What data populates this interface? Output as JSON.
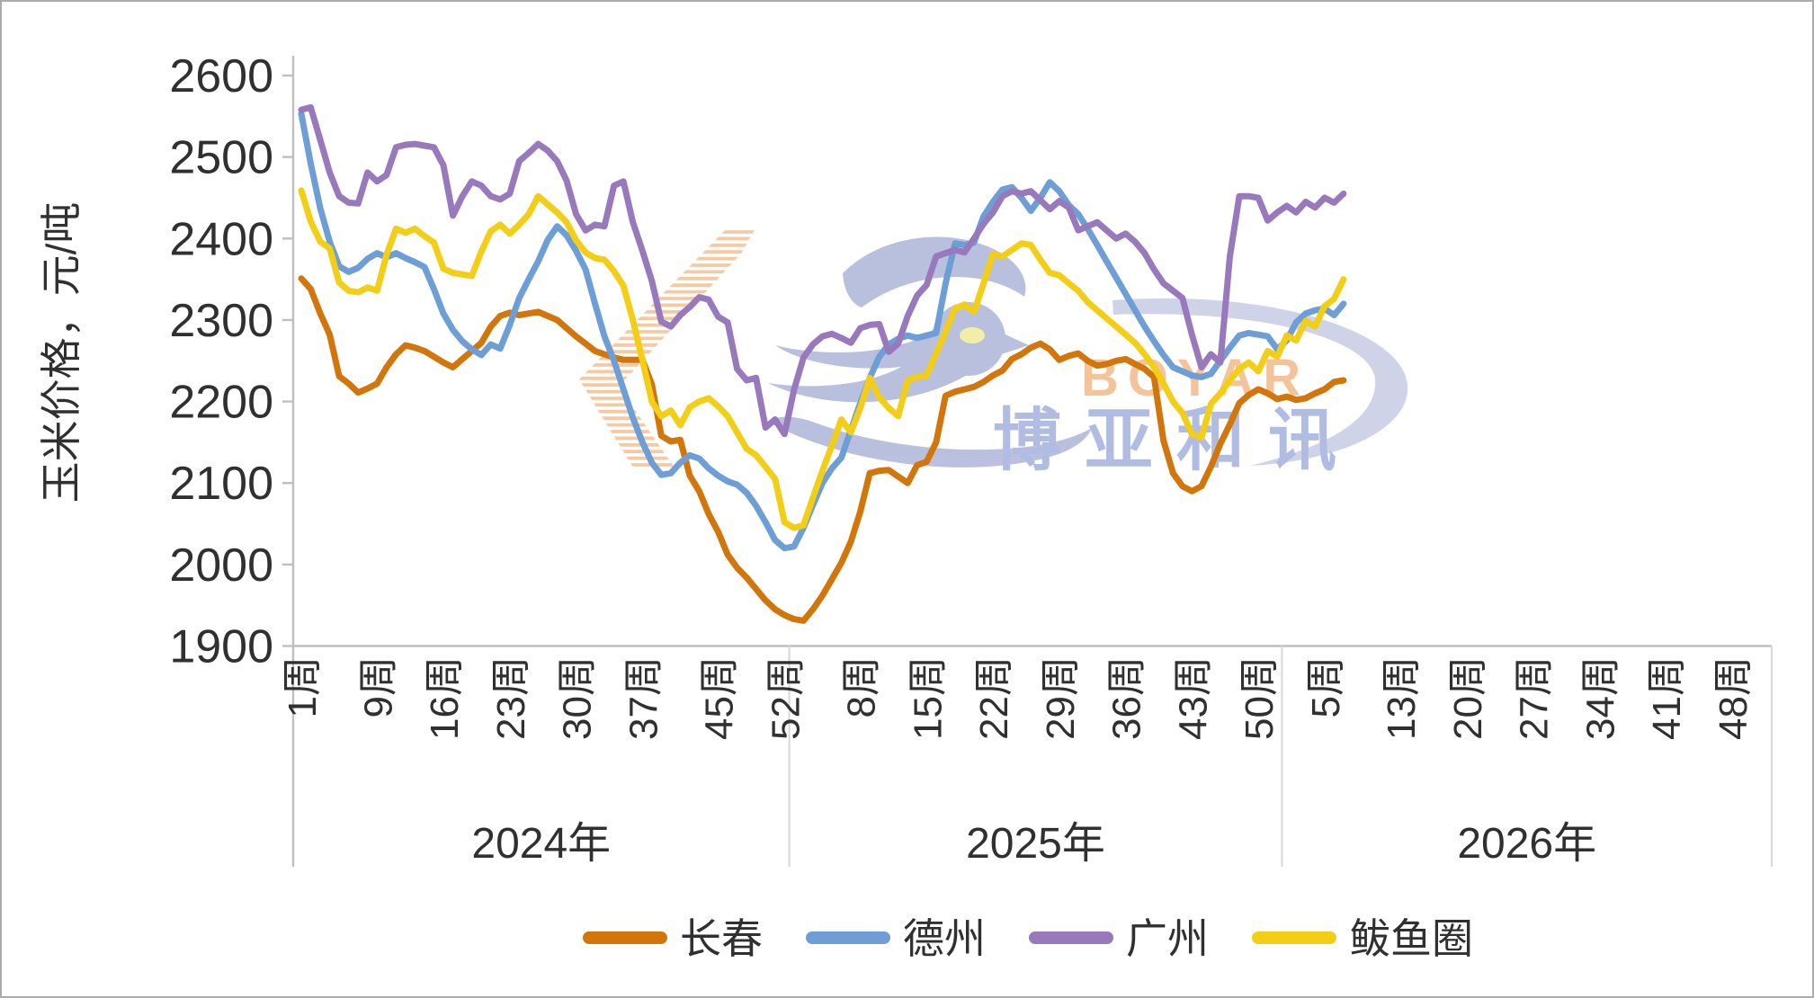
{
  "chart_data": {
    "type": "line",
    "title": "",
    "ylabel": "玉米价格，元/吨",
    "ylim": [
      1900,
      2600
    ],
    "ytick_step": 100,
    "ytick_labels": [
      "1900",
      "2000",
      "2100",
      "2200",
      "2300",
      "2400",
      "2500",
      "2600"
    ],
    "grid": false,
    "legend_position": "bottom",
    "axis_color": "#bfbfbf",
    "separator_color": "#d9d9d9",
    "text_color": "#303030",
    "x_groups": [
      {
        "year_label": "2024年",
        "weeks_in_group": 52,
        "tick_labels": [
          {
            "week": 1,
            "text": "1周"
          },
          {
            "week": 9,
            "text": "9周"
          },
          {
            "week": 16,
            "text": "16周"
          },
          {
            "week": 23,
            "text": "23周"
          },
          {
            "week": 30,
            "text": "30周"
          },
          {
            "week": 37,
            "text": "37周"
          },
          {
            "week": 45,
            "text": "45周"
          },
          {
            "week": 52,
            "text": "52周"
          }
        ]
      },
      {
        "year_label": "2025年",
        "weeks_in_group": 52,
        "tick_labels": [
          {
            "week": 8,
            "text": "8周"
          },
          {
            "week": 15,
            "text": "15周"
          },
          {
            "week": 22,
            "text": "22周"
          },
          {
            "week": 29,
            "text": "29周"
          },
          {
            "week": 36,
            "text": "36周"
          },
          {
            "week": 43,
            "text": "43周"
          },
          {
            "week": 50,
            "text": "50周"
          }
        ]
      },
      {
        "year_label": "2026年",
        "weeks_in_group": 52,
        "tick_labels": [
          {
            "week": 5,
            "text": "5周"
          },
          {
            "week": 13,
            "text": "13周"
          },
          {
            "week": 20,
            "text": "20周"
          },
          {
            "week": 27,
            "text": "27周"
          },
          {
            "week": 34,
            "text": "34周"
          },
          {
            "week": 41,
            "text": "41周"
          },
          {
            "week": 48,
            "text": "48周"
          }
        ]
      }
    ],
    "data_start": {
      "year": 2024,
      "week": 1
    },
    "series": [
      {
        "name": "长春",
        "color": "#d2760b",
        "values": [
          2351,
          2338,
          2308,
          2282,
          2231,
          2222,
          2211,
          2216,
          2222,
          2242,
          2258,
          2269,
          2266,
          2262,
          2255,
          2248,
          2242,
          2252,
          2262,
          2272,
          2292,
          2305,
          2309,
          2306,
          2308,
          2310,
          2305,
          2300,
          2290,
          2280,
          2271,
          2262,
          2258,
          2254,
          2251,
          2251,
          2251,
          2221,
          2158,
          2151,
          2153,
          2109,
          2090,
          2062,
          2040,
          2012,
          1996,
          1984,
          1970,
          1956,
          1945,
          1938,
          1933,
          1931,
          1945,
          1962,
          1982,
          2002,
          2028,
          2065,
          2112,
          2115,
          2116,
          2108,
          2100,
          2122,
          2126,
          2150,
          2207,
          2212,
          2215,
          2218,
          2224,
          2232,
          2238,
          2252,
          2258,
          2266,
          2271,
          2264,
          2251,
          2256,
          2259,
          2250,
          2244,
          2246,
          2250,
          2252,
          2246,
          2240,
          2230,
          2152,
          2112,
          2096,
          2090,
          2096,
          2120,
          2148,
          2172,
          2198,
          2208,
          2215,
          2210,
          2203,
          2206,
          2202,
          2204,
          2210,
          2215,
          2224,
          2226
        ]
      },
      {
        "name": "德州",
        "color": "#6e9ed6",
        "values": [
          2553,
          2492,
          2437,
          2396,
          2366,
          2359,
          2364,
          2375,
          2382,
          2377,
          2382,
          2376,
          2371,
          2365,
          2338,
          2308,
          2288,
          2274,
          2264,
          2257,
          2270,
          2265,
          2294,
          2327,
          2350,
          2372,
          2398,
          2415,
          2404,
          2385,
          2362,
          2320,
          2280,
          2250,
          2215,
          2180,
          2150,
          2125,
          2110,
          2112,
          2125,
          2134,
          2130,
          2118,
          2109,
          2102,
          2098,
          2088,
          2072,
          2052,
          2030,
          2020,
          2022,
          2045,
          2073,
          2100,
          2118,
          2131,
          2165,
          2198,
          2229,
          2255,
          2270,
          2277,
          2281,
          2278,
          2281,
          2284,
          2345,
          2394,
          2392,
          2395,
          2427,
          2445,
          2460,
          2463,
          2450,
          2434,
          2450,
          2469,
          2458,
          2441,
          2430,
          2412,
          2392,
          2372,
          2352,
          2332,
          2312,
          2292,
          2274,
          2257,
          2242,
          2237,
          2232,
          2230,
          2234,
          2250,
          2266,
          2281,
          2284,
          2282,
          2280,
          2264,
          2275,
          2297,
          2308,
          2312,
          2314,
          2306,
          2320
        ]
      },
      {
        "name": "广州",
        "color": "#9879bb",
        "values": [
          2558,
          2561,
          2521,
          2481,
          2452,
          2444,
          2443,
          2481,
          2470,
          2478,
          2512,
          2515,
          2516,
          2514,
          2512,
          2490,
          2428,
          2452,
          2470,
          2465,
          2452,
          2448,
          2455,
          2495,
          2505,
          2516,
          2508,
          2495,
          2471,
          2430,
          2410,
          2417,
          2415,
          2465,
          2470,
          2420,
          2385,
          2348,
          2298,
          2292,
          2306,
          2316,
          2328,
          2325,
          2304,
          2297,
          2240,
          2226,
          2229,
          2168,
          2178,
          2160,
          2214,
          2254,
          2270,
          2280,
          2283,
          2278,
          2272,
          2290,
          2294,
          2295,
          2261,
          2271,
          2305,
          2330,
          2343,
          2378,
          2382,
          2386,
          2383,
          2400,
          2418,
          2432,
          2452,
          2458,
          2455,
          2458,
          2447,
          2436,
          2446,
          2438,
          2410,
          2415,
          2420,
          2410,
          2400,
          2406,
          2396,
          2382,
          2362,
          2345,
          2336,
          2327,
          2282,
          2242,
          2258,
          2248,
          2378,
          2452,
          2452,
          2450,
          2422,
          2432,
          2440,
          2432,
          2445,
          2438,
          2450,
          2444,
          2455
        ]
      },
      {
        "name": "鲅鱼圈",
        "color": "#f2ce16",
        "values": [
          2459,
          2421,
          2396,
          2388,
          2346,
          2336,
          2334,
          2340,
          2336,
          2380,
          2412,
          2407,
          2412,
          2403,
          2395,
          2363,
          2358,
          2356,
          2354,
          2384,
          2409,
          2417,
          2406,
          2417,
          2430,
          2452,
          2442,
          2432,
          2420,
          2398,
          2383,
          2376,
          2374,
          2360,
          2342,
          2300,
          2251,
          2200,
          2182,
          2189,
          2171,
          2193,
          2200,
          2204,
          2194,
          2182,
          2162,
          2142,
          2134,
          2120,
          2105,
          2052,
          2045,
          2048,
          2082,
          2115,
          2146,
          2178,
          2162,
          2192,
          2229,
          2205,
          2192,
          2182,
          2226,
          2230,
          2232,
          2259,
          2286,
          2314,
          2319,
          2310,
          2345,
          2381,
          2378,
          2386,
          2394,
          2392,
          2374,
          2358,
          2355,
          2345,
          2336,
          2322,
          2312,
          2302,
          2292,
          2282,
          2272,
          2258,
          2242,
          2222,
          2200,
          2186,
          2160,
          2156,
          2197,
          2210,
          2226,
          2240,
          2248,
          2237,
          2262,
          2255,
          2281,
          2275,
          2299,
          2292,
          2317,
          2326,
          2350
        ]
      }
    ],
    "watermark": {
      "cn_text": "博亚和讯",
      "en_text": "BOYAR",
      "bird_color": "#b6bddc",
      "stripe_color": "#f3bd8d",
      "cn_color": "#b0bce2",
      "en_color": "#f2be8f"
    }
  }
}
